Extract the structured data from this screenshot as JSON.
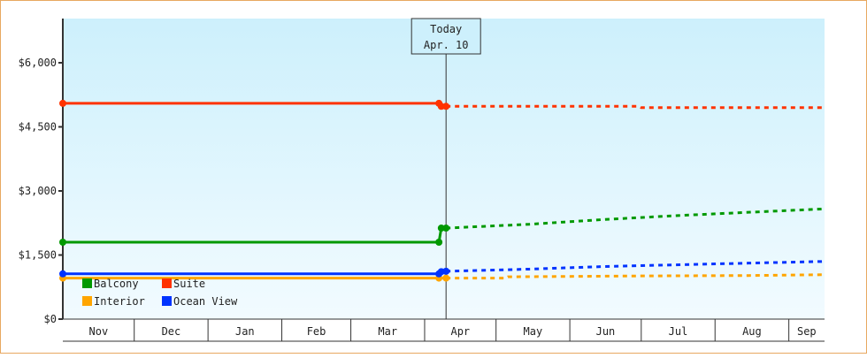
{
  "chart_data": {
    "type": "line",
    "title": "",
    "xlabel": "",
    "ylabel": "",
    "ylim": [
      0,
      7000
    ],
    "y_ticks": [
      {
        "value": 0,
        "label": "$0"
      },
      {
        "value": 1500,
        "label": "$1,500"
      },
      {
        "value": 3000,
        "label": "$3,000"
      },
      {
        "value": 4500,
        "label": "$4,500"
      },
      {
        "value": 6000,
        "label": "$6,000"
      }
    ],
    "x_range": [
      "2023-11-01",
      "2024-09-16"
    ],
    "months": [
      {
        "label": "Nov",
        "start": "2023-11-01"
      },
      {
        "label": "Dec",
        "start": "2023-12-01"
      },
      {
        "label": "Jan",
        "start": "2024-01-01"
      },
      {
        "label": "Feb",
        "start": "2024-02-01"
      },
      {
        "label": "Mar",
        "start": "2024-03-01"
      },
      {
        "label": "Apr",
        "start": "2024-04-01"
      },
      {
        "label": "May",
        "start": "2024-05-01"
      },
      {
        "label": "Jun",
        "start": "2024-06-01"
      },
      {
        "label": "Jul",
        "start": "2024-07-01"
      },
      {
        "label": "Aug",
        "start": "2024-08-01"
      },
      {
        "label": "Sep",
        "start": "2024-09-01"
      }
    ],
    "today": {
      "label": "Today",
      "date_label": "Apr. 10",
      "date": "2024-04-10"
    },
    "grid": false,
    "legend_position": "bottom-left",
    "background_gradient": [
      "#cdf0fc",
      "#f2fbff"
    ],
    "series": [
      {
        "name": "Balcony",
        "color": "#009900",
        "history": [
          [
            "2023-11-01",
            1800
          ],
          [
            "2024-04-07",
            1800
          ],
          [
            "2024-04-08",
            2130
          ],
          [
            "2024-04-10",
            2130
          ]
        ],
        "forecast": [
          [
            "2024-04-10",
            2130
          ],
          [
            "2024-05-15",
            2220
          ],
          [
            "2024-06-15",
            2330
          ],
          [
            "2024-07-15",
            2420
          ],
          [
            "2024-08-15",
            2500
          ],
          [
            "2024-09-16",
            2580
          ]
        ]
      },
      {
        "name": "Suite",
        "color": "#ff3300",
        "history": [
          [
            "2023-11-01",
            5050
          ],
          [
            "2024-04-07",
            5050
          ],
          [
            "2024-04-08",
            4980
          ],
          [
            "2024-04-10",
            4980
          ]
        ],
        "forecast": [
          [
            "2024-04-10",
            4980
          ],
          [
            "2024-06-30",
            4980
          ],
          [
            "2024-07-01",
            4950
          ],
          [
            "2024-09-16",
            4950
          ]
        ]
      },
      {
        "name": "Interior",
        "color": "#ffa500",
        "history": [
          [
            "2023-11-01",
            960
          ],
          [
            "2024-04-07",
            960
          ],
          [
            "2024-04-10",
            960
          ]
        ],
        "forecast": [
          [
            "2024-04-10",
            960
          ],
          [
            "2024-05-05",
            960
          ],
          [
            "2024-05-06",
            990
          ],
          [
            "2024-06-30",
            1010
          ],
          [
            "2024-08-15",
            1020
          ],
          [
            "2024-09-16",
            1040
          ]
        ]
      },
      {
        "name": "Ocean View",
        "color": "#0033ff",
        "history": [
          [
            "2023-11-01",
            1060
          ],
          [
            "2024-04-07",
            1060
          ],
          [
            "2024-04-08",
            1110
          ],
          [
            "2024-04-10",
            1120
          ]
        ],
        "forecast": [
          [
            "2024-04-10",
            1120
          ],
          [
            "2024-05-15",
            1170
          ],
          [
            "2024-06-15",
            1230
          ],
          [
            "2024-07-15",
            1270
          ],
          [
            "2024-08-15",
            1310
          ],
          [
            "2024-09-16",
            1350
          ]
        ]
      }
    ],
    "legend_order": [
      "Balcony",
      "Suite",
      "Interior",
      "Ocean View"
    ]
  }
}
